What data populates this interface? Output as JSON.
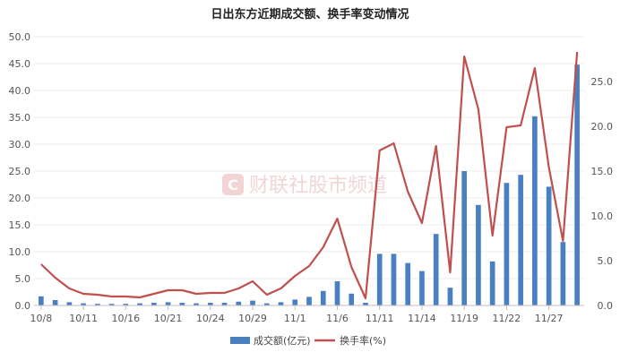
{
  "chart_data": {
    "type": "bar+line",
    "title": "日出东方近期成交额、换手率变动情况",
    "watermark": "财联社股市频道",
    "x_tick_labels": [
      "10/8",
      "10/11",
      "10/16",
      "10/21",
      "10/24",
      "10/29",
      "11/1",
      "11/6",
      "11/11",
      "11/14",
      "11/19",
      "11/22",
      "11/27"
    ],
    "x": [
      "10/8",
      "10/9",
      "10/10",
      "10/11",
      "10/14",
      "10/15",
      "10/16",
      "10/17",
      "10/18",
      "10/21",
      "10/22",
      "10/23",
      "10/24",
      "10/25",
      "10/28",
      "10/29",
      "10/30",
      "10/31",
      "11/1",
      "11/4",
      "11/5",
      "11/6",
      "11/7",
      "11/8",
      "11/11",
      "11/12",
      "11/13",
      "11/14",
      "11/15",
      "11/18",
      "11/19",
      "11/20",
      "11/21",
      "11/22",
      "11/25",
      "11/26",
      "11/27",
      "11/28",
      "11/29"
    ],
    "y_left_ticks": [
      "0.0",
      "5.0",
      "10.0",
      "15.0",
      "20.0",
      "25.0",
      "30.0",
      "35.0",
      "40.0",
      "45.0",
      "50.0"
    ],
    "y_right_ticks": [
      "0.0",
      "5.0",
      "10.0",
      "15.0",
      "20.0",
      "25.0"
    ],
    "ylim_left": [
      0,
      50
    ],
    "ylim_right": [
      0,
      30
    ],
    "grid": true,
    "legend_position": "bottom",
    "series": [
      {
        "name": "成交额(亿元)",
        "type": "bar",
        "axis": "left",
        "color": "#4a7fc1",
        "values": [
          1.7,
          1.0,
          0.6,
          0.4,
          0.3,
          0.3,
          0.3,
          0.4,
          0.5,
          0.6,
          0.5,
          0.4,
          0.5,
          0.5,
          0.7,
          0.9,
          0.4,
          0.6,
          1.1,
          1.6,
          2.7,
          4.5,
          2.2,
          0.5,
          9.6,
          9.6,
          7.9,
          6.4,
          13.3,
          3.3,
          25.0,
          18.7,
          8.2,
          22.8,
          24.3,
          35.2,
          22.1,
          11.8,
          44.8
        ]
      },
      {
        "name": "换手率(%)",
        "type": "line",
        "axis": "right",
        "color": "#c0504d",
        "values": [
          4.6,
          3.1,
          1.9,
          1.3,
          1.2,
          1.0,
          1.0,
          0.9,
          1.3,
          1.7,
          1.7,
          1.3,
          1.4,
          1.4,
          1.9,
          2.7,
          1.2,
          1.9,
          3.3,
          4.4,
          6.5,
          9.7,
          4.3,
          0.8,
          17.3,
          18.1,
          12.7,
          9.2,
          17.8,
          3.7,
          27.8,
          21.9,
          7.8,
          19.9,
          20.1,
          26.5,
          15.4,
          7.2,
          28.3
        ]
      }
    ]
  }
}
